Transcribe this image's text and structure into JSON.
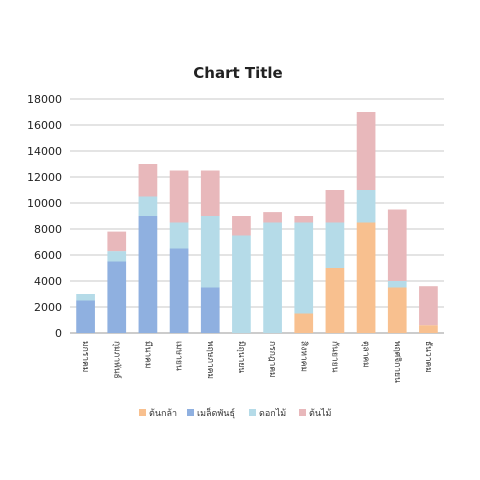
{
  "chart_data": {
    "type": "bar",
    "stacked": true,
    "title": "Chart Title",
    "xlabel": "",
    "ylabel": "",
    "ylim": [
      0,
      18000
    ],
    "yticks": [
      0,
      2000,
      4000,
      6000,
      8000,
      10000,
      12000,
      14000,
      16000,
      18000
    ],
    "grid": true,
    "legend_position": "bottom",
    "categories": [
      "มกราคม",
      "กุมภาพันธ์",
      "มีนาคม",
      "เมษายน",
      "พฤษภาคม",
      "มิถุนายน",
      "กรกฎาคม",
      "สิงหาคม",
      "กันยายน",
      "ตุลาคม",
      "พฤศจิกายน",
      "ธันวาคม"
    ],
    "series": [
      {
        "name": "ต้นกล้า",
        "color": "#f8c08f",
        "values": [
          0,
          0,
          0,
          0,
          0,
          0,
          0,
          1500,
          5000,
          8500,
          3500,
          600
        ]
      },
      {
        "name": "เมล็ดพันธุ์",
        "color": "#8fb0e0",
        "values": [
          2500,
          5500,
          9000,
          6500,
          3500,
          0,
          0,
          0,
          0,
          0,
          0,
          0
        ]
      },
      {
        "name": "ดอกไม้",
        "color": "#b5dbe8",
        "values": [
          500,
          800,
          1500,
          2000,
          5500,
          7500,
          8500,
          7000,
          3500,
          2500,
          500,
          0
        ]
      },
      {
        "name": "ต้นไม้",
        "color": "#e8b8bb",
        "values": [
          0,
          1500,
          2500,
          4000,
          3500,
          1500,
          800,
          500,
          2500,
          6000,
          5500,
          3000
        ]
      }
    ]
  }
}
